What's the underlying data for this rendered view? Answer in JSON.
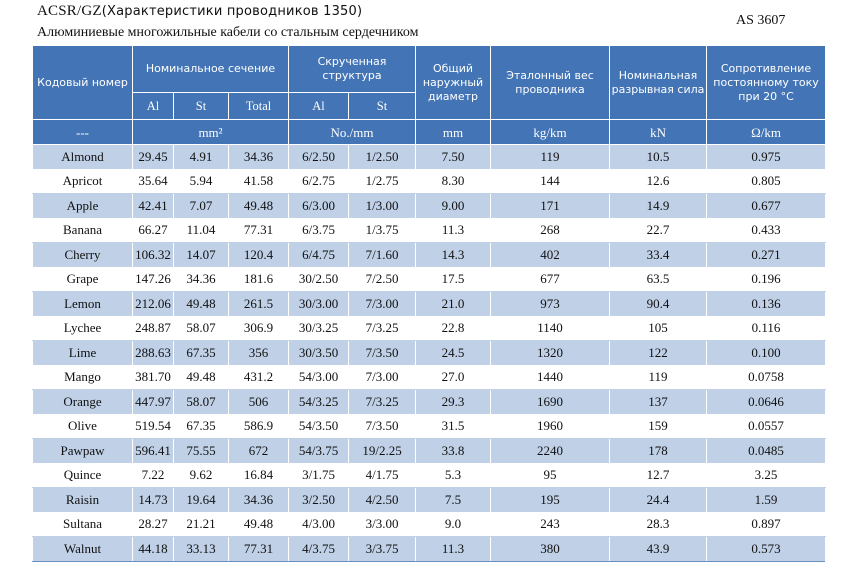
{
  "header": {
    "title_latin": "ACSR/GZ",
    "title_paren": "(Характеристики  проводников  1350)",
    "subtitle": "Алюминиевые многожильные кабели со стальным сердечником",
    "standard": "AS 3607"
  },
  "table": {
    "headers": {
      "code": "Кодовый номер",
      "nominal_section": "Номинальное сечение",
      "stranding": "Скрученная структура",
      "diameter": "Общий наружный диаметр",
      "mass": "Эталонный вес проводника",
      "breaking": "Номинальная разрывная сила",
      "resistance": "Сопротивление постоянному току при 20 °C",
      "al": "Al",
      "st": "St",
      "total": "Total",
      "al2": "Al",
      "st2": "St"
    },
    "units": {
      "code": "---",
      "section": "mm²",
      "stranding": "No./mm",
      "diameter": "mm",
      "mass": "kg/km",
      "breaking": "kN",
      "resistance": "Ω/km"
    },
    "rows": [
      [
        "Almond",
        "29.45",
        "4.91",
        "34.36",
        "6/2.50",
        "1/2.50",
        "7.50",
        "119",
        "10.5",
        "0.975"
      ],
      [
        "Apricot",
        "35.64",
        "5.94",
        "41.58",
        "6/2.75",
        "1/2.75",
        "8.30",
        "144",
        "12.6",
        "0.805"
      ],
      [
        "Apple",
        "42.41",
        "7.07",
        "49.48",
        "6/3.00",
        "1/3.00",
        "9.00",
        "171",
        "14.9",
        "0.677"
      ],
      [
        "Banana",
        "66.27",
        "11.04",
        "77.31",
        "6/3.75",
        "1/3.75",
        "11.3",
        "268",
        "22.7",
        "0.433"
      ],
      [
        "Cherry",
        "106.32",
        "14.07",
        "120.4",
        "6/4.75",
        "7/1.60",
        "14.3",
        "402",
        "33.4",
        "0.271"
      ],
      [
        "Grape",
        "147.26",
        "34.36",
        "181.6",
        "30/2.50",
        "7/2.50",
        "17.5",
        "677",
        "63.5",
        "0.196"
      ],
      [
        "Lemon",
        "212.06",
        "49.48",
        "261.5",
        "30/3.00",
        "7/3.00",
        "21.0",
        "973",
        "90.4",
        "0.136"
      ],
      [
        "Lychee",
        "248.87",
        "58.07",
        "306.9",
        "30/3.25",
        "7/3.25",
        "22.8",
        "1140",
        "105",
        "0.116"
      ],
      [
        "Lime",
        "288.63",
        "67.35",
        "356",
        "30/3.50",
        "7/3.50",
        "24.5",
        "1320",
        "122",
        "0.100"
      ],
      [
        "Mango",
        "381.70",
        "49.48",
        "431.2",
        "54/3.00",
        "7/3.00",
        "27.0",
        "1440",
        "119",
        "0.0758"
      ],
      [
        "Orange",
        "447.97",
        "58.07",
        "506",
        "54/3.25",
        "7/3.25",
        "29.3",
        "1690",
        "137",
        "0.0646"
      ],
      [
        "Olive",
        "519.54",
        "67.35",
        "586.9",
        "54/3.50",
        "7/3.50",
        "31.5",
        "1960",
        "159",
        "0.0557"
      ],
      [
        "Pawpaw",
        "596.41",
        "75.55",
        "672",
        "54/3.75",
        "19/2.25",
        "33.8",
        "2240",
        "178",
        "0.0485"
      ],
      [
        "Quince",
        "7.22",
        "9.62",
        "16.84",
        "3/1.75",
        "4/1.75",
        "5.3",
        "95",
        "12.7",
        "3.25"
      ],
      [
        "Raisin",
        "14.73",
        "19.64",
        "34.36",
        "3/2.50",
        "4/2.50",
        "7.5",
        "195",
        "24.4",
        "1.59"
      ],
      [
        "Sultana",
        "28.27",
        "21.21",
        "49.48",
        "4/3.00",
        "3/3.00",
        "9.0",
        "243",
        "28.3",
        "0.897"
      ],
      [
        "Walnut",
        "44.18",
        "33.13",
        "77.31",
        "4/3.75",
        "3/3.75",
        "11.3",
        "380",
        "43.9",
        "0.573"
      ]
    ]
  }
}
